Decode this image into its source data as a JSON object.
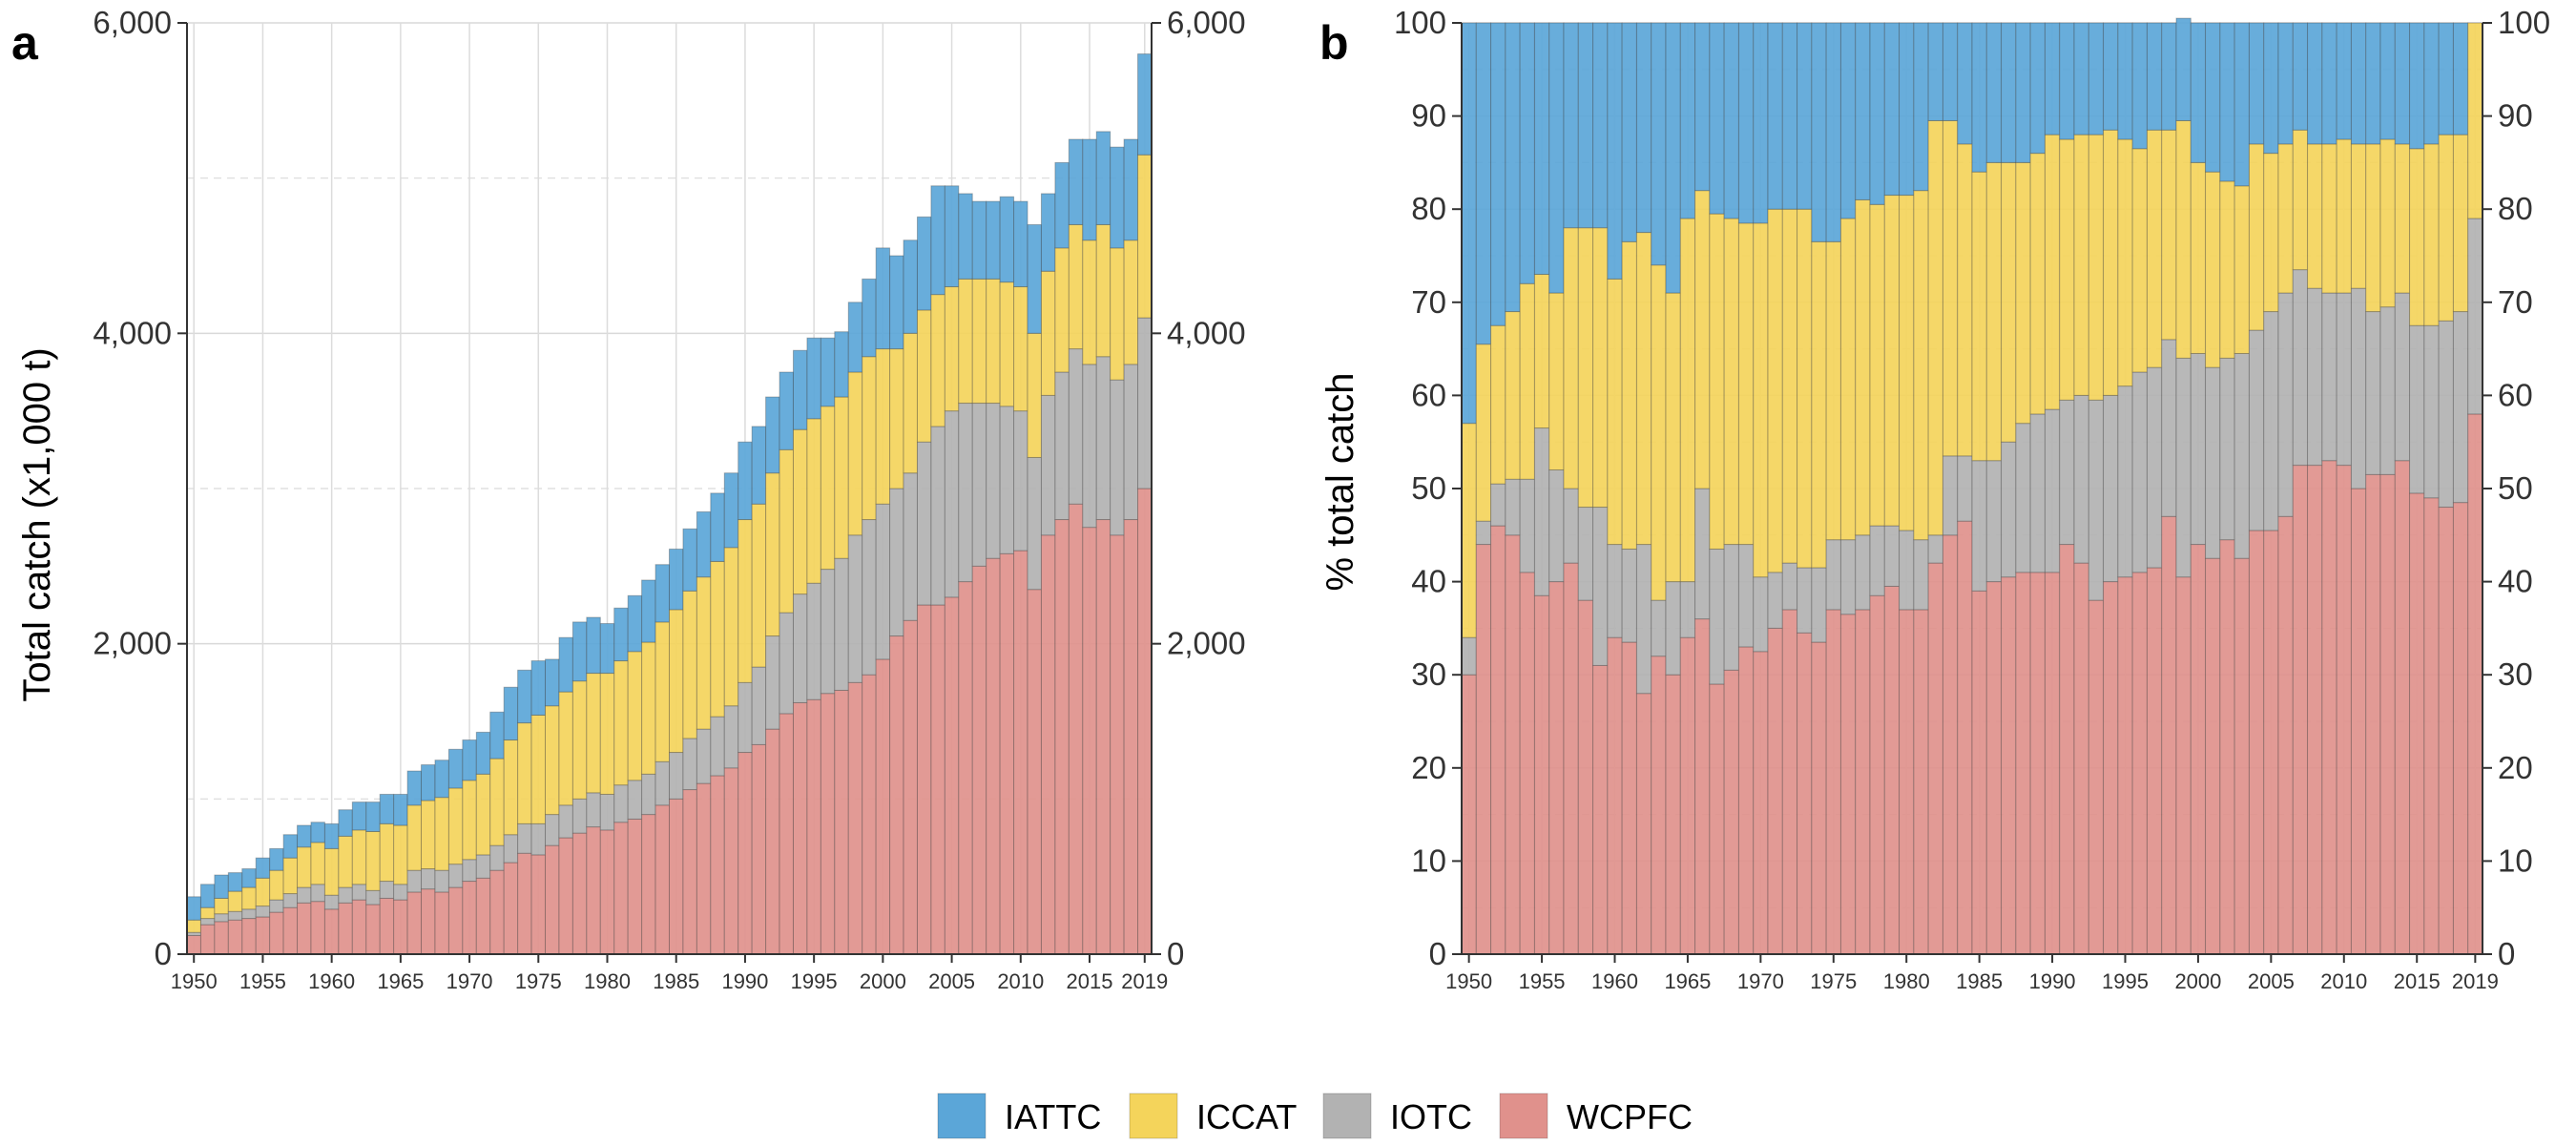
{
  "chart_data": [
    {
      "panel": "a",
      "type": "bar",
      "stacked": true,
      "ylabel": "Total catch (x1,000 t)",
      "ylim": [
        0,
        6000
      ],
      "yticks": [
        0,
        2000,
        4000,
        6000
      ],
      "ytick_labels": [
        "0",
        "2,000",
        "4,000",
        "6,000"
      ],
      "x": [
        1950,
        1951,
        1952,
        1953,
        1954,
        1955,
        1956,
        1957,
        1958,
        1959,
        1960,
        1961,
        1962,
        1963,
        1964,
        1965,
        1966,
        1967,
        1968,
        1969,
        1970,
        1971,
        1972,
        1973,
        1974,
        1975,
        1976,
        1977,
        1978,
        1979,
        1980,
        1981,
        1982,
        1983,
        1984,
        1985,
        1986,
        1987,
        1988,
        1989,
        1990,
        1991,
        1992,
        1993,
        1994,
        1995,
        1996,
        1997,
        1998,
        1999,
        2000,
        2001,
        2002,
        2003,
        2004,
        2005,
        2006,
        2007,
        2008,
        2009,
        2010,
        2011,
        2012,
        2013,
        2014,
        2015,
        2016,
        2017,
        2018,
        2019
      ],
      "xtick_labels": [
        "1950",
        "1955",
        "1960",
        "1965",
        "1970",
        "1975",
        "1980",
        "1985",
        "1990",
        "1995",
        "2000",
        "2005",
        "2010",
        "2015",
        "2019"
      ],
      "series": [
        {
          "name": "WCPFC",
          "color": "#e0918c",
          "values": [
            120,
            190,
            210,
            220,
            230,
            240,
            270,
            300,
            330,
            340,
            290,
            330,
            350,
            320,
            360,
            350,
            400,
            420,
            400,
            430,
            470,
            490,
            540,
            590,
            650,
            640,
            700,
            750,
            780,
            820,
            800,
            850,
            870,
            900,
            960,
            1000,
            1060,
            1100,
            1150,
            1200,
            1300,
            1350,
            1450,
            1550,
            1620,
            1640,
            1680,
            1700,
            1750,
            1800,
            1900,
            2050,
            2150,
            2250,
            2250,
            2300,
            2400,
            2500,
            2550,
            2580,
            2600,
            2350,
            2700,
            2800,
            2900,
            2750,
            2800,
            2700,
            2800,
            3000
          ]
        },
        {
          "name": "IOTC",
          "color": "#b2b2b2",
          "values": [
            20,
            40,
            50,
            55,
            60,
            70,
            80,
            90,
            100,
            110,
            90,
            100,
            100,
            90,
            110,
            100,
            140,
            130,
            140,
            150,
            140,
            150,
            160,
            180,
            190,
            200,
            200,
            210,
            220,
            220,
            230,
            240,
            250,
            260,
            280,
            300,
            330,
            350,
            380,
            400,
            450,
            500,
            600,
            650,
            700,
            750,
            800,
            850,
            950,
            1000,
            1000,
            950,
            950,
            1050,
            1150,
            1200,
            1150,
            1050,
            1000,
            950,
            900,
            850,
            900,
            950,
            1000,
            1050,
            1050,
            1000,
            1000,
            1100
          ]
        },
        {
          "name": "ICCAT",
          "color": "#f4d45b",
          "values": [
            80,
            70,
            100,
            130,
            140,
            180,
            190,
            230,
            260,
            270,
            300,
            330,
            350,
            380,
            370,
            380,
            420,
            440,
            470,
            490,
            510,
            520,
            560,
            610,
            650,
            700,
            700,
            730,
            760,
            770,
            780,
            800,
            830,
            850,
            900,
            920,
            950,
            980,
            1000,
            1020,
            1050,
            1050,
            1050,
            1050,
            1060,
            1060,
            1050,
            1040,
            1050,
            1050,
            1000,
            900,
            900,
            850,
            850,
            800,
            800,
            800,
            800,
            800,
            800,
            800,
            800,
            800,
            800,
            800,
            850,
            850,
            800,
            1050
          ]
        },
        {
          "name": "IATTC",
          "color": "#5ba6d8",
          "values": [
            150,
            150,
            150,
            120,
            120,
            130,
            140,
            150,
            140,
            130,
            160,
            170,
            180,
            190,
            190,
            200,
            220,
            230,
            240,
            250,
            260,
            270,
            300,
            340,
            340,
            350,
            300,
            350,
            380,
            360,
            320,
            340,
            360,
            400,
            370,
            390,
            400,
            420,
            440,
            480,
            500,
            500,
            490,
            500,
            510,
            520,
            440,
            420,
            450,
            500,
            650,
            600,
            600,
            600,
            700,
            650,
            550,
            500,
            500,
            550,
            550,
            700,
            500,
            550,
            550,
            650,
            600,
            650,
            650,
            650
          ]
        }
      ]
    },
    {
      "panel": "b",
      "type": "bar",
      "stacked": true,
      "ylabel": "% total catch",
      "ylim": [
        0,
        100
      ],
      "yticks": [
        0,
        10,
        20,
        30,
        40,
        50,
        60,
        70,
        80,
        90,
        100
      ],
      "ytick_labels": [
        "0",
        "10",
        "20",
        "30",
        "40",
        "50",
        "60",
        "70",
        "80",
        "90",
        "100"
      ],
      "x": [
        1950,
        1951,
        1952,
        1953,
        1954,
        1955,
        1956,
        1957,
        1958,
        1959,
        1960,
        1961,
        1962,
        1963,
        1964,
        1965,
        1966,
        1967,
        1968,
        1969,
        1970,
        1971,
        1972,
        1973,
        1974,
        1975,
        1976,
        1977,
        1978,
        1979,
        1980,
        1981,
        1982,
        1983,
        1984,
        1985,
        1986,
        1987,
        1988,
        1989,
        1990,
        1991,
        1992,
        1993,
        1994,
        1995,
        1996,
        1997,
        1998,
        1999,
        2000,
        2001,
        2002,
        2003,
        2004,
        2005,
        2006,
        2007,
        2008,
        2009,
        2010,
        2011,
        2012,
        2013,
        2014,
        2015,
        2016,
        2017,
        2018,
        2019
      ],
      "xtick_labels": [
        "1950",
        "1955",
        "1960",
        "1965",
        "1970",
        "1975",
        "1980",
        "1985",
        "1990",
        "1995",
        "2000",
        "2005",
        "2010",
        "2015",
        "2019"
      ],
      "series": [
        {
          "name": "WCPFC",
          "color": "#e0918c",
          "values": [
            30,
            44,
            46,
            45,
            41,
            38.5,
            40,
            42,
            38,
            31,
            34,
            33.5,
            28,
            32,
            30,
            34,
            36,
            29,
            30.5,
            33,
            32.5,
            35,
            37,
            34.5,
            33.5,
            37,
            36.5,
            37,
            38.5,
            39.5,
            37,
            37,
            42,
            45,
            46.5,
            39,
            40,
            40.5,
            41,
            41,
            41,
            44,
            42,
            38,
            40,
            40.5,
            41,
            41.5,
            47,
            40.5,
            44,
            42.5,
            44.5,
            42.5,
            45.5,
            45.5,
            47,
            52.5,
            52.5,
            53,
            52.5,
            50,
            51.5,
            51.5,
            53,
            49.5,
            49,
            48,
            48.5,
            58
          ]
        },
        {
          "name": "IOTC",
          "color": "#b2b2b2",
          "values": [
            4,
            2.5,
            4.5,
            6,
            10,
            18,
            12,
            8,
            10,
            17,
            10,
            10,
            16,
            6,
            10,
            6,
            14,
            14.5,
            13.5,
            11,
            8,
            6,
            5,
            7,
            8,
            7.5,
            8,
            8,
            7.5,
            6.5,
            8.5,
            7.5,
            3,
            8.5,
            7,
            14,
            13,
            14.5,
            16,
            17,
            17.5,
            15.5,
            18,
            21.5,
            20,
            20.5,
            21.5,
            21.5,
            19,
            23.5,
            20.5,
            20.5,
            19.5,
            22,
            21.5,
            23.5,
            24,
            21,
            19,
            18,
            18.5,
            21.5,
            17.5,
            18,
            18,
            18,
            18.5,
            20,
            20.5,
            21
          ]
        },
        {
          "name": "ICCAT",
          "color": "#f4d45b",
          "values": [
            23,
            19,
            17,
            18,
            21,
            16.5,
            19,
            28,
            30,
            30,
            28.5,
            33,
            33.5,
            36,
            31,
            39,
            32,
            36,
            35,
            34.5,
            38,
            39,
            38,
            38.5,
            35,
            32,
            34.5,
            36,
            34.5,
            35.5,
            36,
            37.5,
            44.5,
            36,
            33.5,
            31,
            32,
            30,
            28,
            28,
            29.5,
            28,
            28,
            28.5,
            28.5,
            26.5,
            24,
            25.5,
            22.5,
            25.5,
            20.5,
            21,
            19,
            18,
            20,
            17,
            16,
            15,
            15.5,
            16,
            16.5,
            15.5,
            18,
            18,
            16,
            19,
            19.5,
            20,
            19,
            21
          ]
        },
        {
          "name": "IATTC",
          "color": "#5ba6d8",
          "values": [
            43,
            34.5,
            32.5,
            31,
            28,
            27,
            29,
            22,
            22,
            22,
            27.5,
            23.5,
            22.5,
            26,
            29,
            21,
            18,
            20.5,
            21,
            21.5,
            21.5,
            20,
            20,
            20,
            23.5,
            23.5,
            21,
            19,
            19.5,
            18.5,
            18.5,
            18,
            10.5,
            10.5,
            13,
            16,
            15,
            15,
            15,
            14,
            12,
            12.5,
            12,
            12,
            11.5,
            12.5,
            13.5,
            11.5,
            11.5,
            11,
            15,
            16,
            17,
            17.5,
            13,
            14,
            13,
            11.5,
            13,
            13,
            12.5,
            13,
            13,
            12.5,
            13,
            13.5,
            13,
            12,
            12,
            0
          ]
        }
      ]
    }
  ],
  "legend": [
    {
      "name": "IATTC",
      "color": "#5ba6d8"
    },
    {
      "name": "ICCAT",
      "color": "#f4d45b"
    },
    {
      "name": "IOTC",
      "color": "#b2b2b2"
    },
    {
      "name": "WCPFC",
      "color": "#e0918c"
    }
  ],
  "panel_labels": [
    "a",
    "b"
  ]
}
